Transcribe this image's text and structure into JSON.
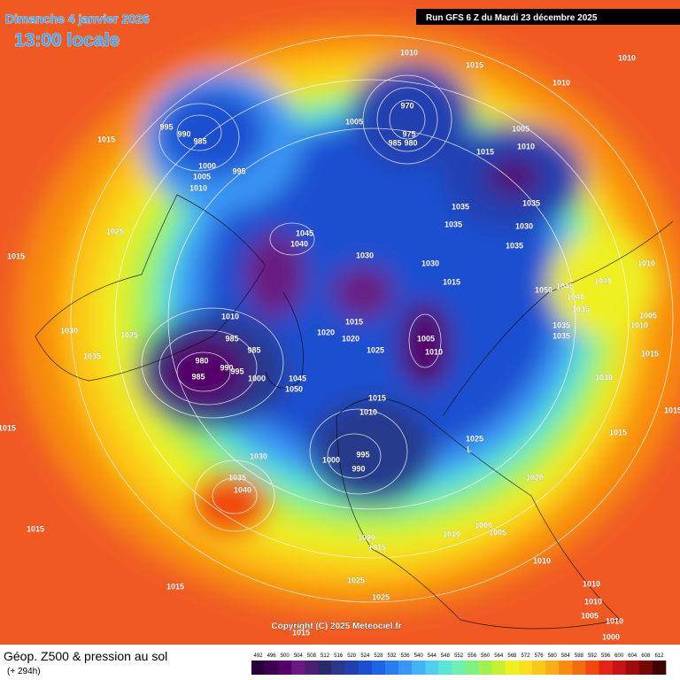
{
  "header": {
    "date": "Dimanche 4 janvier 2026",
    "time": "13:00 locale",
    "run": "Run GFS 6 Z du Mardi 23 décembre 2025"
  },
  "footer": {
    "title": "Géop. Z500 & pression au sol",
    "subtitle": "(+ 294h)",
    "copyright": "Copyright (C) 2025 Meteociel.fr"
  },
  "legend": {
    "levels": [
      492,
      496,
      500,
      504,
      508,
      512,
      516,
      520,
      524,
      528,
      532,
      536,
      540,
      544,
      548,
      552,
      556,
      560,
      564,
      568,
      572,
      576,
      580,
      584,
      588,
      592,
      596,
      600,
      604,
      608,
      612
    ],
    "colors": [
      "#2a0038",
      "#3c0050",
      "#55006a",
      "#6a1a80",
      "#4b2070",
      "#2a2a6a",
      "#283a8c",
      "#2040b0",
      "#1a50d0",
      "#1e64e6",
      "#2a7cf0",
      "#3a96f4",
      "#46b4f4",
      "#4ed0ee",
      "#5ae6d4",
      "#6ef0b0",
      "#80f080",
      "#a0f050",
      "#c8f030",
      "#eef020",
      "#fce020",
      "#fcc818",
      "#fcac14",
      "#f88c10",
      "#f46c10",
      "#f04810",
      "#e42414",
      "#c81414",
      "#a00c0c",
      "#780808",
      "#400404"
    ]
  },
  "pressure_labels": [
    1010,
    1015,
    1010,
    1010,
    970,
    995,
    990,
    985,
    1005,
    975,
    985,
    980,
    1015,
    1005,
    1010,
    1015,
    1000,
    995,
    1005,
    1010,
    1035,
    1035,
    1025,
    1045,
    1040,
    1035,
    1030,
    1035,
    1015,
    1030,
    1030,
    1010,
    1040,
    1015,
    1050,
    1045,
    1040,
    1035,
    1010,
    1015,
    1020,
    1020,
    1005,
    1010,
    1025,
    1030,
    1025,
    985,
    985,
    1035,
    1005,
    1010,
    1015,
    1035,
    1035,
    980,
    990,
    995,
    985,
    1000,
    1045,
    1050,
    1030,
    1015,
    1010,
    1015,
    1015,
    1015,
    1025,
    995,
    1000,
    990,
    1030,
    1035,
    1040,
    1020,
    1015,
    1010,
    1000,
    1005,
    1020,
    1015,
    1010,
    1025,
    1015,
    1010,
    1025,
    1010,
    1005,
    1010,
    1000,
    1015,
    "L"
  ]
}
